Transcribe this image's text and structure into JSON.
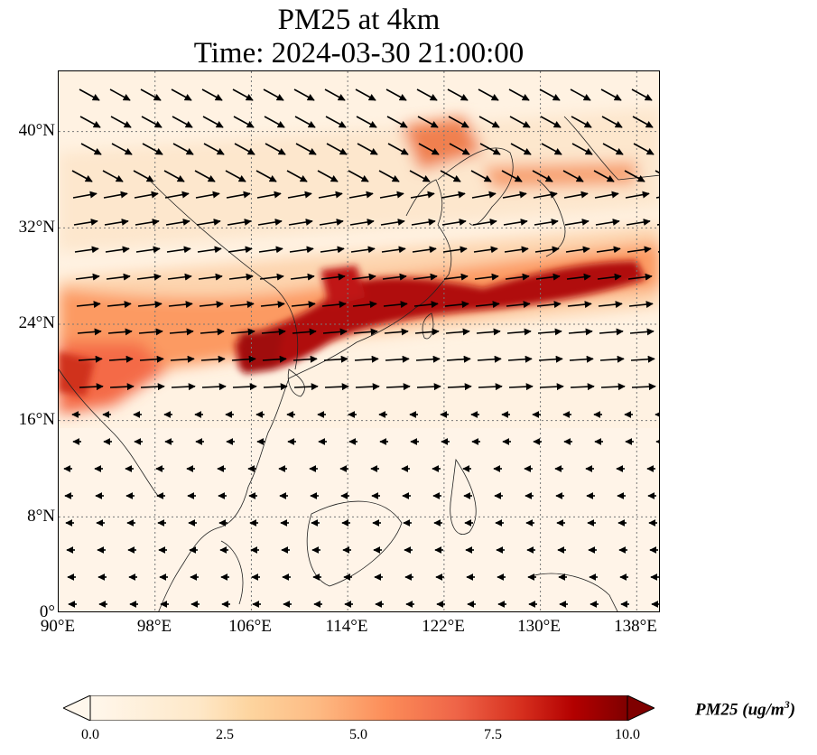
{
  "title": {
    "line1": "PM25 at 4km",
    "line2": "Time: 2024-03-30 21:00:00"
  },
  "map": {
    "lon_range": [
      90,
      140
    ],
    "lat_range": [
      0,
      45
    ],
    "lon_ticks": [
      "90°E",
      "98°E",
      "106°E",
      "114°E",
      "122°E",
      "130°E",
      "138°E"
    ],
    "lat_ticks": [
      "0°",
      "8°N",
      "16°N",
      "24°N",
      "32°N",
      "40°N"
    ],
    "gridlines": "dotted",
    "field": "PM25 concentration at 4 km with wind vectors",
    "colormap": "OrRd",
    "colors": {
      "low": "#fff7ec",
      "mid": "#fc8d59",
      "high": "#7f0000",
      "coastline": "#222222",
      "vector": "#000000"
    }
  },
  "colorbar": {
    "ticks": [
      "0.0",
      "2.5",
      "5.0",
      "7.5",
      "10.0"
    ],
    "range": [
      0,
      10
    ],
    "label": "PM25",
    "unit_base": "(ug/m",
    "unit_exp": "3",
    "unit_close": ")",
    "extend": "both"
  }
}
